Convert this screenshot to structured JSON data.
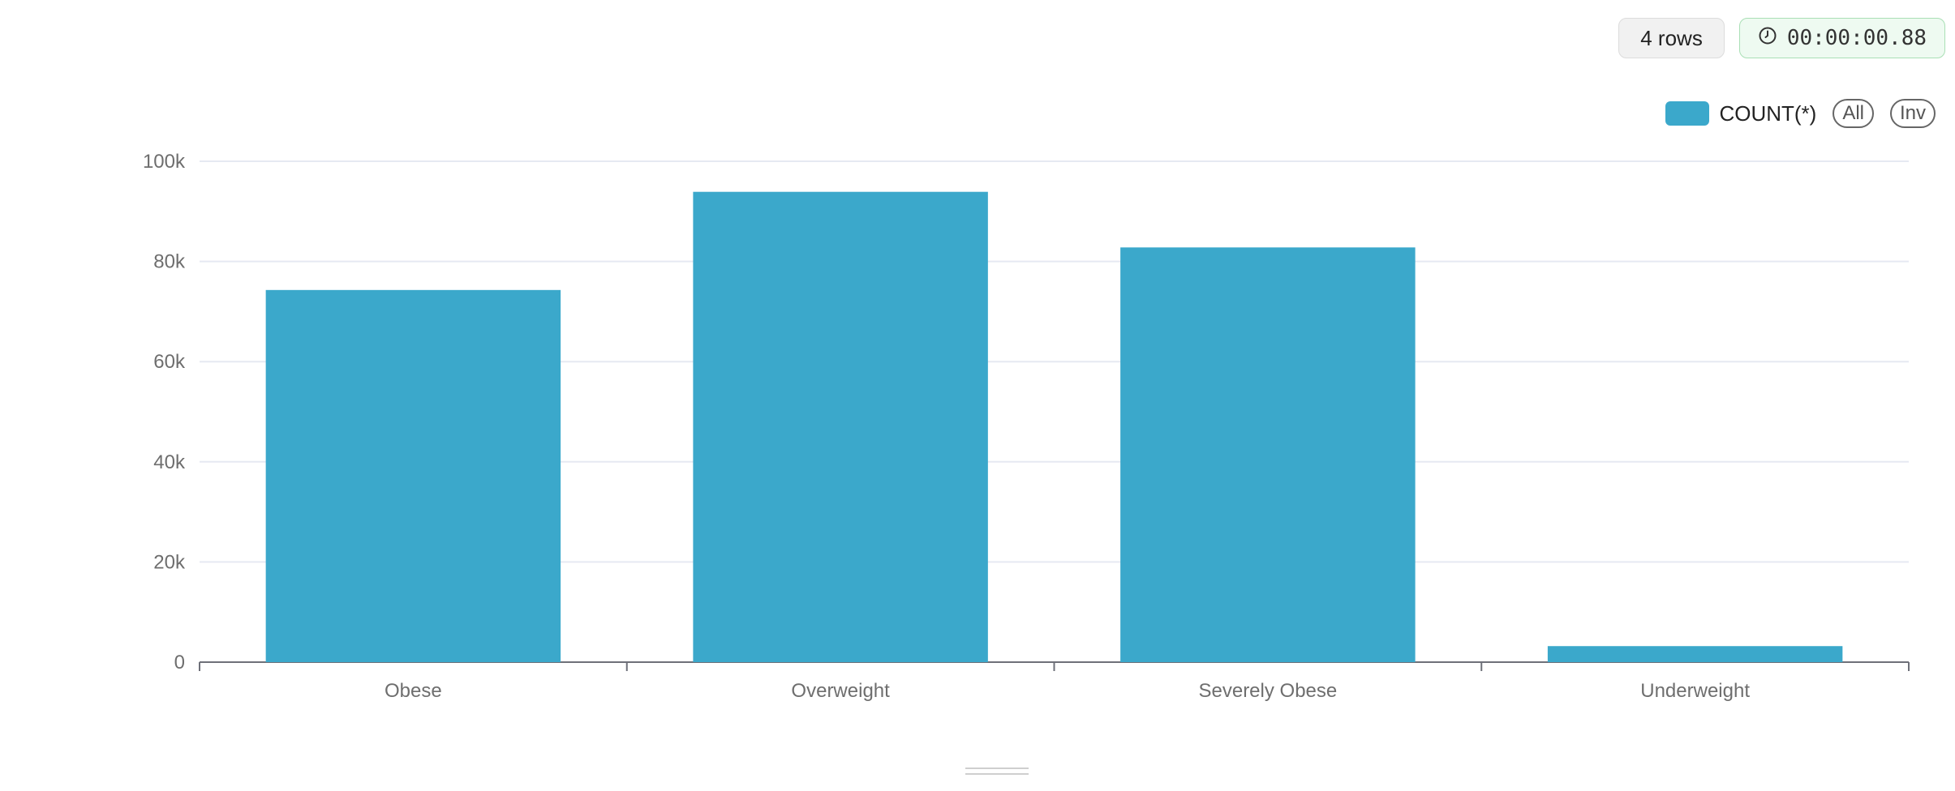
{
  "badges": {
    "rows": "4 rows",
    "timer": "00:00:00.88",
    "timer_icon": "clock-icon"
  },
  "legend": {
    "series_label": "COUNT(*)",
    "all_label": "All",
    "inv_label": "Inv"
  },
  "colors": {
    "bar": "#3ba8cb",
    "grid": "#e6e9f2",
    "axis": "#6e7079"
  },
  "chart_data": {
    "type": "bar",
    "categories": [
      "Obese",
      "Overweight",
      "Severely Obese",
      "Underweight"
    ],
    "series": [
      {
        "name": "COUNT(*)",
        "values": [
          74300,
          93900,
          82800,
          3200
        ]
      }
    ],
    "ylim": [
      0,
      100000
    ],
    "yticks": [
      0,
      20000,
      40000,
      60000,
      80000,
      100000
    ],
    "ytick_labels": [
      "0",
      "20k",
      "40k",
      "60k",
      "80k",
      "100k"
    ],
    "grid": true,
    "legend_position": "top-right"
  }
}
